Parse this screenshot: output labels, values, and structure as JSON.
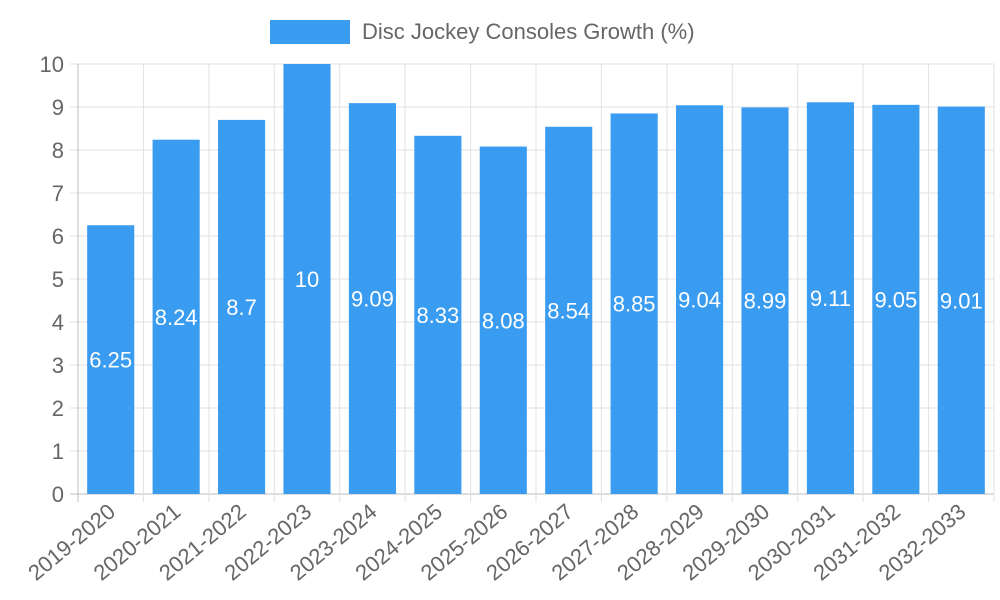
{
  "chart_data": {
    "type": "bar",
    "categories": [
      "2019-2020",
      "2020-2021",
      "2021-2022",
      "2022-2023",
      "2023-2024",
      "2024-2025",
      "2025-2026",
      "2026-2027",
      "2027-2028",
      "2028-2029",
      "2029-2030",
      "2030-2031",
      "2031-2032",
      "2032-2033"
    ],
    "series": [
      {
        "name": "Disc Jockey Consoles Growth (%)",
        "values": [
          6.25,
          8.24,
          8.7,
          10,
          9.09,
          8.33,
          8.08,
          8.54,
          8.85,
          9.04,
          8.99,
          9.11,
          9.05,
          9.01
        ],
        "color": "#3a9cf0"
      }
    ],
    "ylim": [
      0,
      10
    ],
    "yticks": [
      0,
      1,
      2,
      3,
      4,
      5,
      6,
      7,
      8,
      9,
      10
    ],
    "legend_position": "top-center",
    "grid": true
  },
  "colors": {
    "grid": "#e1e1e1",
    "axis": "#bdbdbd",
    "tick_text": "#666666",
    "data_label": "#ffffff"
  }
}
